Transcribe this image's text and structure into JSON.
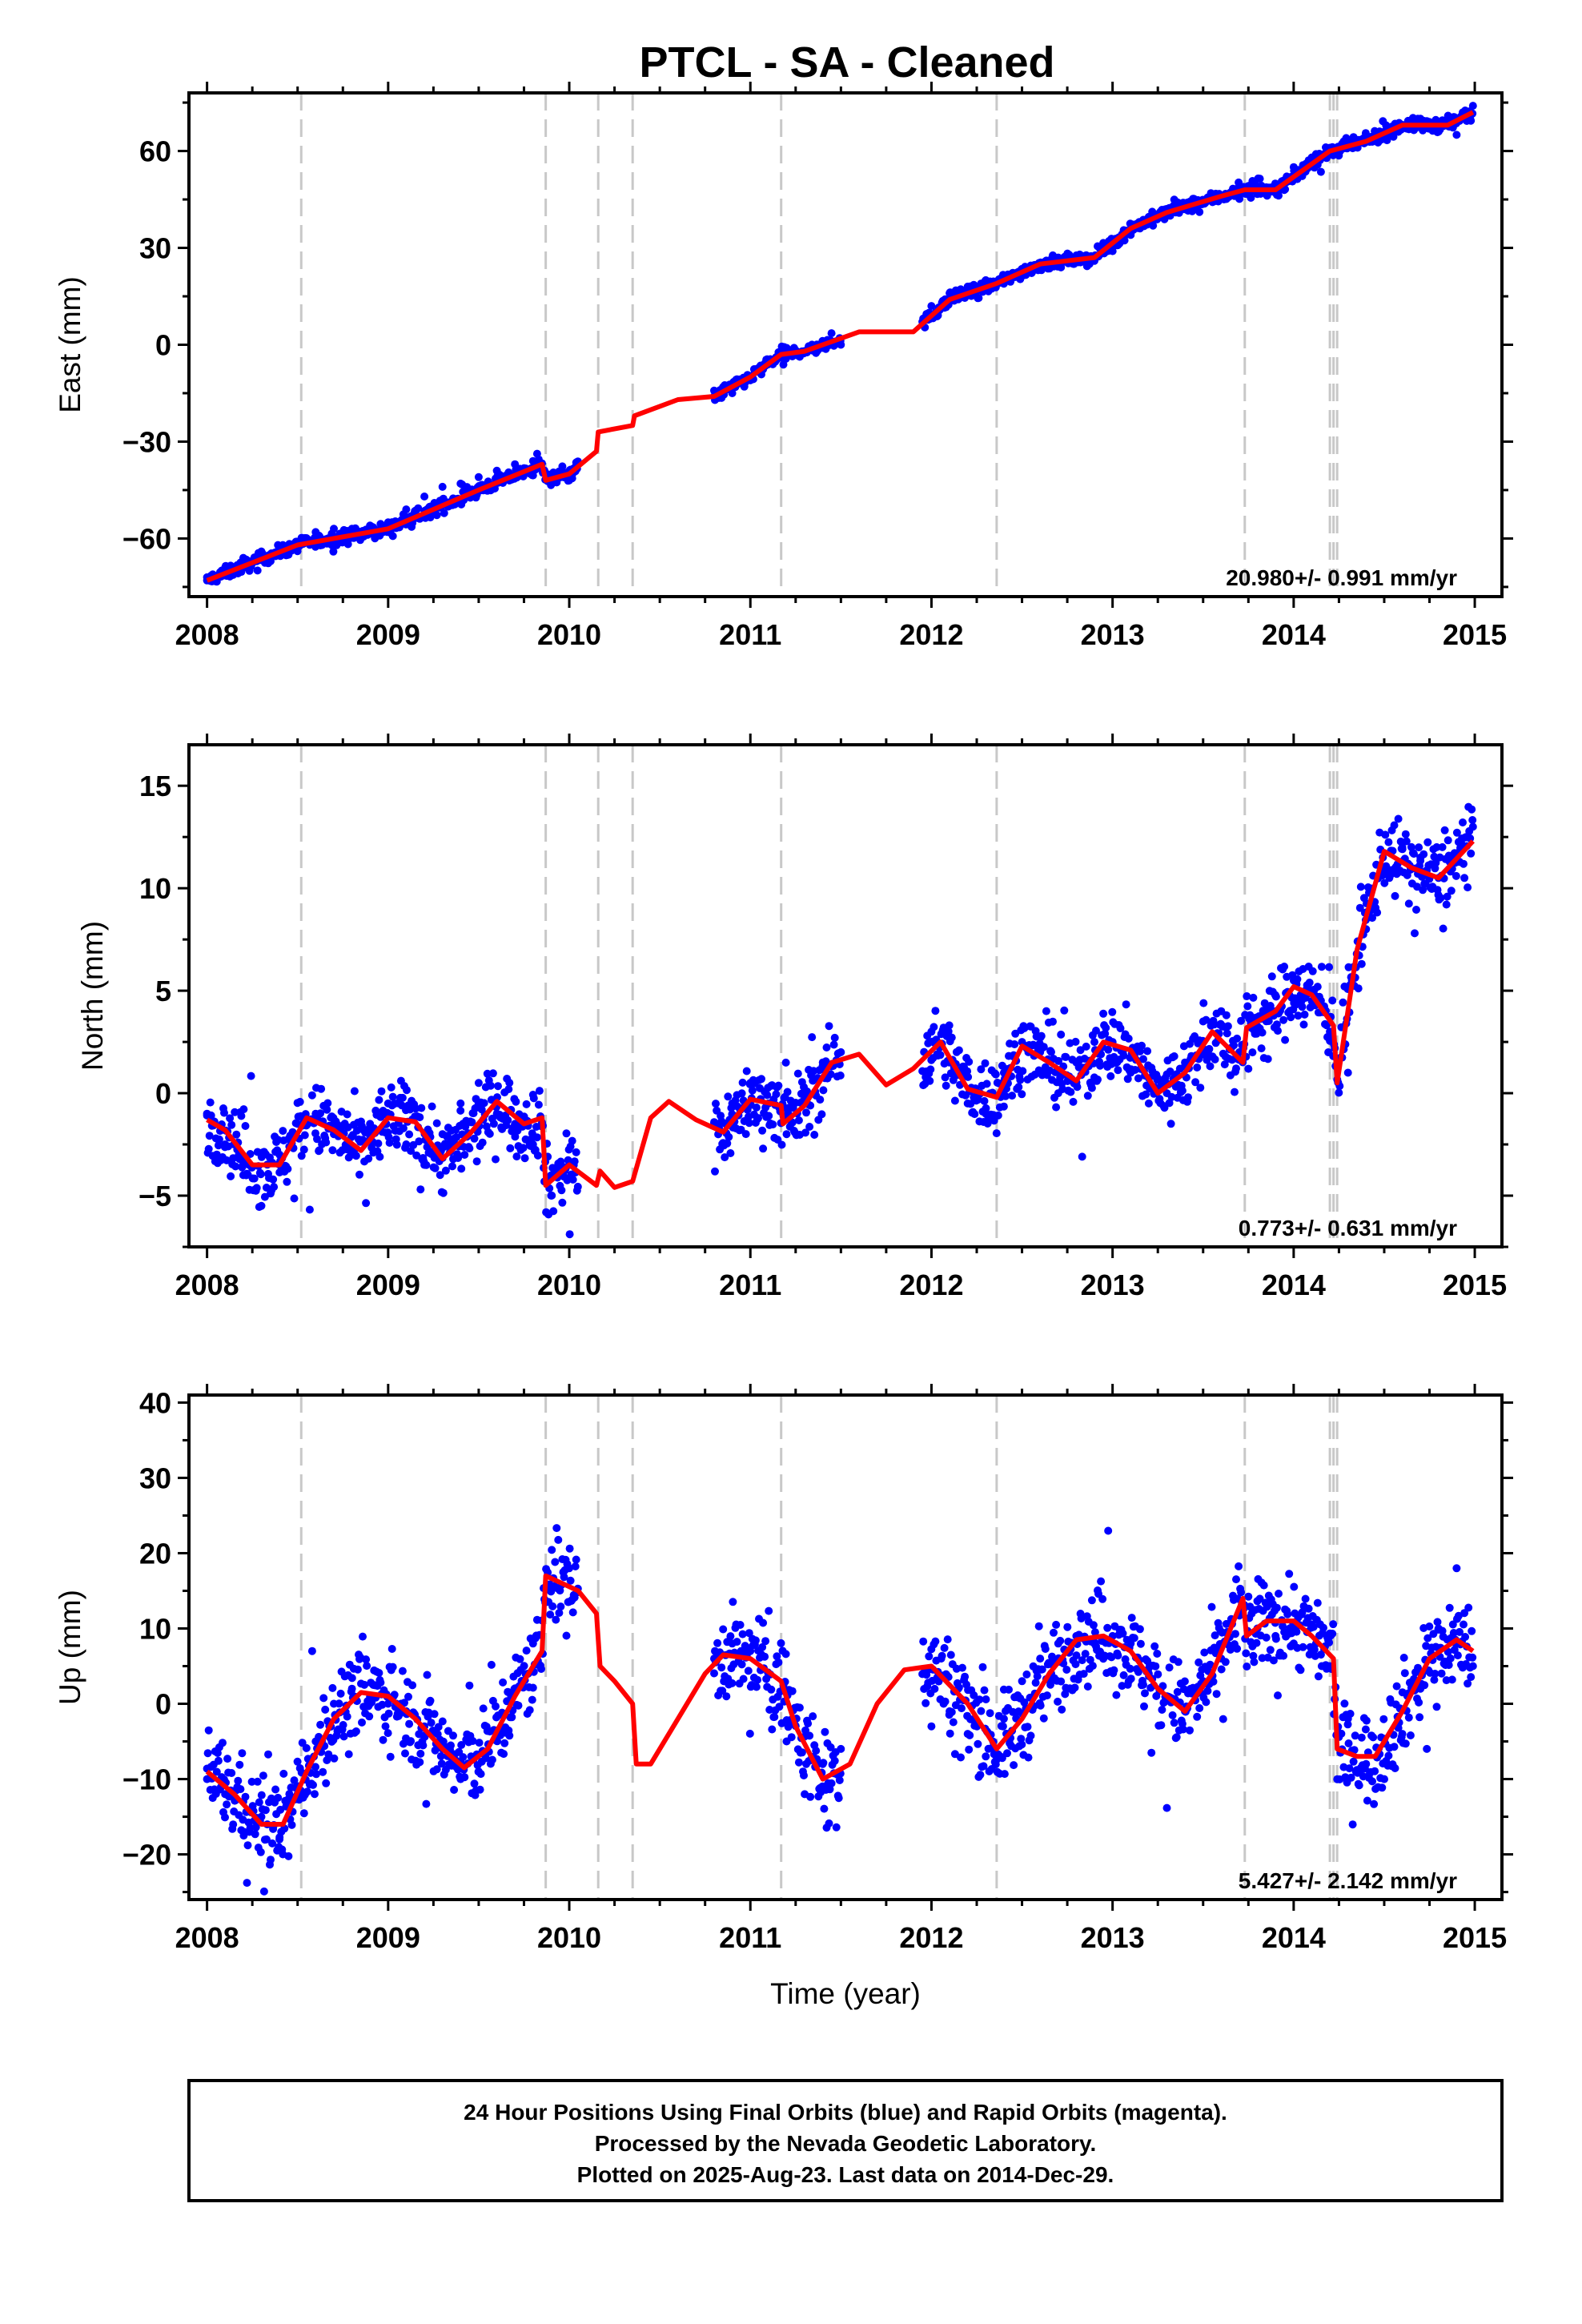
{
  "title": "PTCL  - SA - Cleaned",
  "colors": {
    "data": "#0000ff",
    "model": "#ff0000",
    "event": "#c8c8c8",
    "frame": "#000000"
  },
  "footer": {
    "line1": "24 Hour Positions Using Final Orbits (blue) and Rapid Orbits (magenta).",
    "line2": "Processed by the Nevada Geodetic Laboratory.",
    "line3": "Plotted on 2025-Aug-23. Last data on 2014-Dec-29."
  },
  "chart_data": [
    {
      "type": "scatter",
      "component": "east",
      "ylabel": "East (mm)",
      "xlabel": "",
      "xlim": [
        2007.9,
        2015.15
      ],
      "ylim": [
        -78,
        78
      ],
      "xticks": [
        2008,
        2009,
        2010,
        2011,
        2012,
        2013,
        2014,
        2015
      ],
      "yticks": [
        -60,
        -30,
        0,
        30,
        60
      ],
      "rate_label": "20.980+/- 0.991 mm/yr",
      "event_lines": [
        2008.52,
        2009.87,
        2010.16,
        2010.35,
        2011.17,
        2012.36,
        2013.73,
        2014.2,
        2014.22,
        2014.24
      ],
      "data_ranges": [
        [
          2008.0,
          2010.05
        ],
        [
          2010.8,
          2011.5
        ],
        [
          2011.95,
          2014.99
        ]
      ],
      "model": {
        "x": [
          2008.0,
          2008.5,
          2009.0,
          2009.5,
          2009.85,
          2009.87,
          2010.0,
          2010.15,
          2010.16,
          2010.35,
          2010.36,
          2010.6,
          2010.8,
          2011.0,
          2011.17,
          2011.3,
          2011.6,
          2011.9,
          2012.1,
          2012.36,
          2012.6,
          2012.9,
          2013.1,
          2013.3,
          2013.6,
          2013.73,
          2013.9,
          2014.2,
          2014.4,
          2014.6,
          2014.85,
          2014.99
        ],
        "y": [
          -73,
          -62,
          -57,
          -45,
          -37,
          -42,
          -40,
          -33,
          -27,
          -25,
          -22,
          -17,
          -16,
          -10,
          -3,
          -2,
          4,
          4,
          14,
          19,
          25,
          27,
          36,
          41,
          46,
          48,
          48,
          60,
          63,
          68,
          68,
          72
        ]
      },
      "points": {
        "x": [
          2008.0,
          2008.1,
          2008.2,
          2008.3,
          2008.4,
          2008.5,
          2008.6,
          2008.7,
          2008.8,
          2008.9,
          2009.0,
          2009.1,
          2009.2,
          2009.3,
          2009.4,
          2009.5,
          2009.6,
          2009.7,
          2009.8,
          2009.9,
          2010.0,
          2010.8,
          2010.9,
          2011.0,
          2011.1,
          2011.2,
          2011.3,
          2011.4,
          2011.5,
          2012.0,
          2012.1,
          2012.2,
          2012.3,
          2012.4,
          2012.5,
          2012.6,
          2012.7,
          2012.8,
          2012.9,
          2013.0,
          2013.1,
          2013.2,
          2013.3,
          2013.4,
          2013.5,
          2013.6,
          2013.7,
          2013.8,
          2013.9,
          2014.0,
          2014.1,
          2014.2,
          2014.3,
          2014.4,
          2014.5,
          2014.6,
          2014.7,
          2014.8,
          2014.9,
          2014.99
        ],
        "y": [
          -73,
          -69,
          -66,
          -64,
          -63,
          -61,
          -58,
          -57,
          -57,
          -56,
          -55,
          -51,
          -47,
          -44,
          -43,
          -41,
          -39,
          -37,
          -36,
          -41,
          -42,
          -16,
          -15,
          -11,
          -6,
          -3,
          -2,
          -1,
          0,
          12,
          16,
          18,
          20,
          21,
          23,
          25,
          27,
          26,
          26,
          29,
          34,
          38,
          40,
          42,
          44,
          46,
          47,
          48,
          49,
          55,
          58,
          61,
          62,
          63,
          65,
          68,
          70,
          66,
          65,
          74
        ]
      }
    },
    {
      "type": "scatter",
      "component": "north",
      "ylabel": "North (mm)",
      "xlabel": "",
      "xlim": [
        2007.9,
        2015.15
      ],
      "ylim": [
        -7.5,
        17
      ],
      "xticks": [
        2008,
        2009,
        2010,
        2011,
        2012,
        2013,
        2014,
        2015
      ],
      "yticks": [
        -5,
        0,
        5,
        10,
        15
      ],
      "rate_label": "0.773+/- 0.631 mm/yr",
      "event_lines": [
        2008.52,
        2009.87,
        2010.16,
        2010.35,
        2011.17,
        2012.36,
        2013.73,
        2014.2,
        2014.22,
        2014.24
      ],
      "data_ranges": [
        [
          2008.0,
          2010.05
        ],
        [
          2010.8,
          2011.5
        ],
        [
          2011.95,
          2014.99
        ]
      ],
      "model": {
        "x": [
          2008.0,
          2008.1,
          2008.25,
          2008.4,
          2008.55,
          2008.7,
          2008.85,
          2009.0,
          2009.15,
          2009.3,
          2009.45,
          2009.6,
          2009.75,
          2009.85,
          2009.87,
          2010.0,
          2010.15,
          2010.17,
          2010.25,
          2010.35,
          2010.45,
          2010.55,
          2010.7,
          2010.85,
          2011.0,
          2011.17,
          2011.18,
          2011.3,
          2011.45,
          2011.6,
          2011.75,
          2011.9,
          2012.05,
          2012.2,
          2012.36,
          2012.5,
          2012.65,
          2012.8,
          2012.95,
          2013.1,
          2013.25,
          2013.4,
          2013.55,
          2013.72,
          2013.74,
          2013.9,
          2014.0,
          2014.1,
          2014.22,
          2014.24,
          2014.35,
          2014.5,
          2014.65,
          2014.8,
          2014.99
        ],
        "y": [
          -1.3,
          -1.8,
          -3.5,
          -3.5,
          -1.2,
          -1.8,
          -2.8,
          -1.2,
          -1.4,
          -3.2,
          -2.0,
          -0.4,
          -1.5,
          -1.2,
          -4.5,
          -3.5,
          -4.5,
          -3.8,
          -4.6,
          -4.3,
          -1.2,
          -0.4,
          -1.3,
          -1.9,
          -0.3,
          -0.6,
          -1.5,
          -0.6,
          1.5,
          1.9,
          0.4,
          1.2,
          2.5,
          0.2,
          -0.2,
          2.3,
          1.5,
          0.6,
          2.5,
          2.1,
          0.0,
          1.0,
          3.0,
          1.5,
          3.2,
          4.0,
          5.2,
          4.8,
          3.3,
          0.5,
          7.0,
          11.8,
          11.0,
          10.5,
          12.3
        ]
      },
      "points": {
        "x": [
          2008.0,
          2008.1,
          2008.2,
          2008.3,
          2008.4,
          2008.5,
          2008.6,
          2008.7,
          2008.8,
          2008.9,
          2009.0,
          2009.1,
          2009.2,
          2009.3,
          2009.4,
          2009.5,
          2009.6,
          2009.7,
          2009.8,
          2009.9,
          2010.0,
          2010.8,
          2010.9,
          2011.0,
          2011.1,
          2011.2,
          2011.3,
          2011.4,
          2011.5,
          2012.0,
          2012.1,
          2012.2,
          2012.3,
          2012.4,
          2012.5,
          2012.6,
          2012.7,
          2012.8,
          2012.9,
          2013.0,
          2013.1,
          2013.2,
          2013.3,
          2013.4,
          2013.5,
          2013.6,
          2013.7,
          2013.8,
          2013.9,
          2014.0,
          2014.1,
          2014.2,
          2014.3,
          2014.4,
          2014.5,
          2014.6,
          2014.7,
          2014.8,
          2014.9,
          2014.99
        ],
        "y": [
          -1.0,
          -2.5,
          -4.0,
          -5.5,
          -3.0,
          -1.5,
          -1.0,
          -2.0,
          -3.0,
          -1.5,
          -0.5,
          -2.5,
          -3.5,
          -2.0,
          -0.5,
          0.5,
          -1.0,
          -1.5,
          -2.5,
          -5.0,
          -3.5,
          -1.5,
          -0.5,
          0.5,
          -0.5,
          -2.0,
          0.0,
          1.5,
          2.0,
          3.0,
          1.5,
          -0.5,
          -1.0,
          1.0,
          2.5,
          2.0,
          0.0,
          1.5,
          2.5,
          2.5,
          1.0,
          -0.5,
          0.0,
          1.5,
          3.5,
          4.0,
          2.0,
          3.0,
          4.0,
          5.5,
          4.5,
          3.0,
          1.0,
          8.0,
          11.0,
          12.0,
          11.5,
          10.5,
          11.5,
          13.0
        ]
      }
    },
    {
      "type": "scatter",
      "component": "up",
      "ylabel": "Up (mm)",
      "xlabel": "Time (year)",
      "xlim": [
        2007.9,
        2015.15
      ],
      "ylim": [
        -26,
        41
      ],
      "xticks": [
        2008,
        2009,
        2010,
        2011,
        2012,
        2013,
        2014,
        2015
      ],
      "yticks": [
        -20,
        -10,
        0,
        10,
        20,
        30,
        40
      ],
      "rate_label": "5.427+/- 2.142 mm/yr",
      "event_lines": [
        2008.52,
        2009.87,
        2010.16,
        2010.35,
        2011.17,
        2012.36,
        2013.73,
        2014.2,
        2014.22,
        2014.24
      ],
      "data_ranges": [
        [
          2008.0,
          2010.05
        ],
        [
          2010.8,
          2011.5
        ],
        [
          2011.95,
          2014.99
        ]
      ],
      "model": {
        "x": [
          2008.0,
          2008.15,
          2008.3,
          2008.42,
          2008.55,
          2008.7,
          2008.85,
          2009.0,
          2009.15,
          2009.3,
          2009.42,
          2009.55,
          2009.7,
          2009.85,
          2009.87,
          2010.05,
          2010.15,
          2010.17,
          2010.25,
          2010.35,
          2010.37,
          2010.45,
          2010.6,
          2010.75,
          2010.85,
          2011.0,
          2011.17,
          2011.25,
          2011.4,
          2011.55,
          2011.7,
          2011.85,
          2012.0,
          2012.2,
          2012.36,
          2012.5,
          2012.65,
          2012.8,
          2012.95,
          2013.1,
          2013.25,
          2013.4,
          2013.55,
          2013.72,
          2013.74,
          2013.85,
          2014.0,
          2014.1,
          2014.22,
          2014.24,
          2014.35,
          2014.45,
          2014.6,
          2014.75,
          2014.9,
          2014.99
        ],
        "y": [
          -9,
          -12,
          -16,
          -16,
          -9,
          -2,
          1.5,
          1,
          -2,
          -6,
          -8.5,
          -6,
          1,
          7,
          17,
          15,
          12,
          5,
          3,
          0,
          -8,
          -8,
          -2,
          4,
          6.5,
          6,
          3,
          -3,
          -10,
          -8,
          0,
          4.5,
          5,
          0,
          -6,
          -2,
          4,
          8.5,
          9,
          7,
          2,
          -1,
          4,
          14,
          9,
          11,
          11,
          9,
          6,
          -6,
          -7,
          -7,
          -1,
          6,
          8.5,
          7
        ]
      },
      "points": {
        "x": [
          2008.0,
          2008.1,
          2008.2,
          2008.3,
          2008.4,
          2008.5,
          2008.6,
          2008.7,
          2008.8,
          2008.9,
          2009.0,
          2009.1,
          2009.2,
          2009.3,
          2009.4,
          2009.5,
          2009.6,
          2009.7,
          2009.8,
          2009.9,
          2010.0,
          2010.8,
          2010.9,
          2011.0,
          2011.1,
          2011.2,
          2011.3,
          2011.4,
          2011.5,
          2012.0,
          2012.1,
          2012.2,
          2012.3,
          2012.4,
          2012.5,
          2012.6,
          2012.7,
          2012.8,
          2012.9,
          2013.0,
          2013.1,
          2013.2,
          2013.3,
          2013.4,
          2013.5,
          2013.6,
          2013.7,
          2013.8,
          2013.9,
          2014.0,
          2014.1,
          2014.2,
          2014.3,
          2014.4,
          2014.5,
          2014.6,
          2014.7,
          2014.8,
          2014.9,
          2014.99
        ],
        "y": [
          -10,
          -12,
          -13,
          -15,
          -18,
          -12,
          -5,
          0,
          2,
          0,
          0,
          -1,
          -3,
          -6,
          -10,
          -9,
          -4,
          2,
          8,
          15,
          18,
          6,
          8,
          7,
          4,
          -5,
          -12,
          -8,
          -6,
          -3,
          -1,
          -4,
          -7,
          -2,
          3,
          6,
          8,
          9,
          8,
          9,
          8,
          4,
          1,
          -1,
          3,
          6,
          12,
          10,
          9,
          8,
          7,
          5,
          -2,
          -8,
          -10,
          -4,
          2,
          10,
          18,
          5
        ]
      }
    }
  ]
}
